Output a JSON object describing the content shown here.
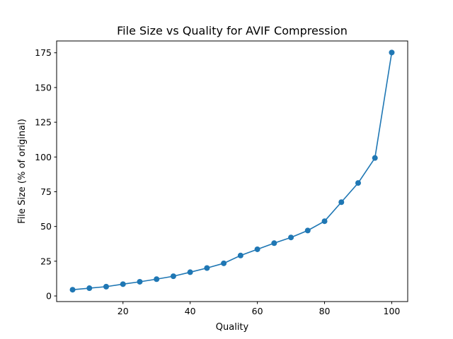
{
  "chart_data": {
    "type": "line",
    "title": "File Size vs Quality for AVIF Compression",
    "xlabel": "Quality",
    "ylabel": "File Size (% of original)",
    "xlim": [
      0.25,
      104.75
    ],
    "ylim": [
      -4.04,
      183.5
    ],
    "xticks": [
      20,
      40,
      60,
      80,
      100
    ],
    "yticks": [
      0,
      25,
      50,
      75,
      100,
      125,
      150,
      175
    ],
    "grid": false,
    "markers": true,
    "series": [
      {
        "color": "#1f77b4",
        "x": [
          5,
          10,
          15,
          20,
          25,
          30,
          35,
          40,
          45,
          50,
          55,
          60,
          65,
          70,
          75,
          80,
          85,
          90,
          95,
          100
        ],
        "y": [
          4.5,
          5.6,
          6.7,
          8.5,
          10.2,
          12.1,
          14.2,
          17.1,
          20.1,
          23.5,
          29.1,
          33.6,
          38.0,
          42.1,
          47.1,
          53.8,
          67.5,
          81.3,
          99.3,
          175.2
        ]
      }
    ]
  }
}
